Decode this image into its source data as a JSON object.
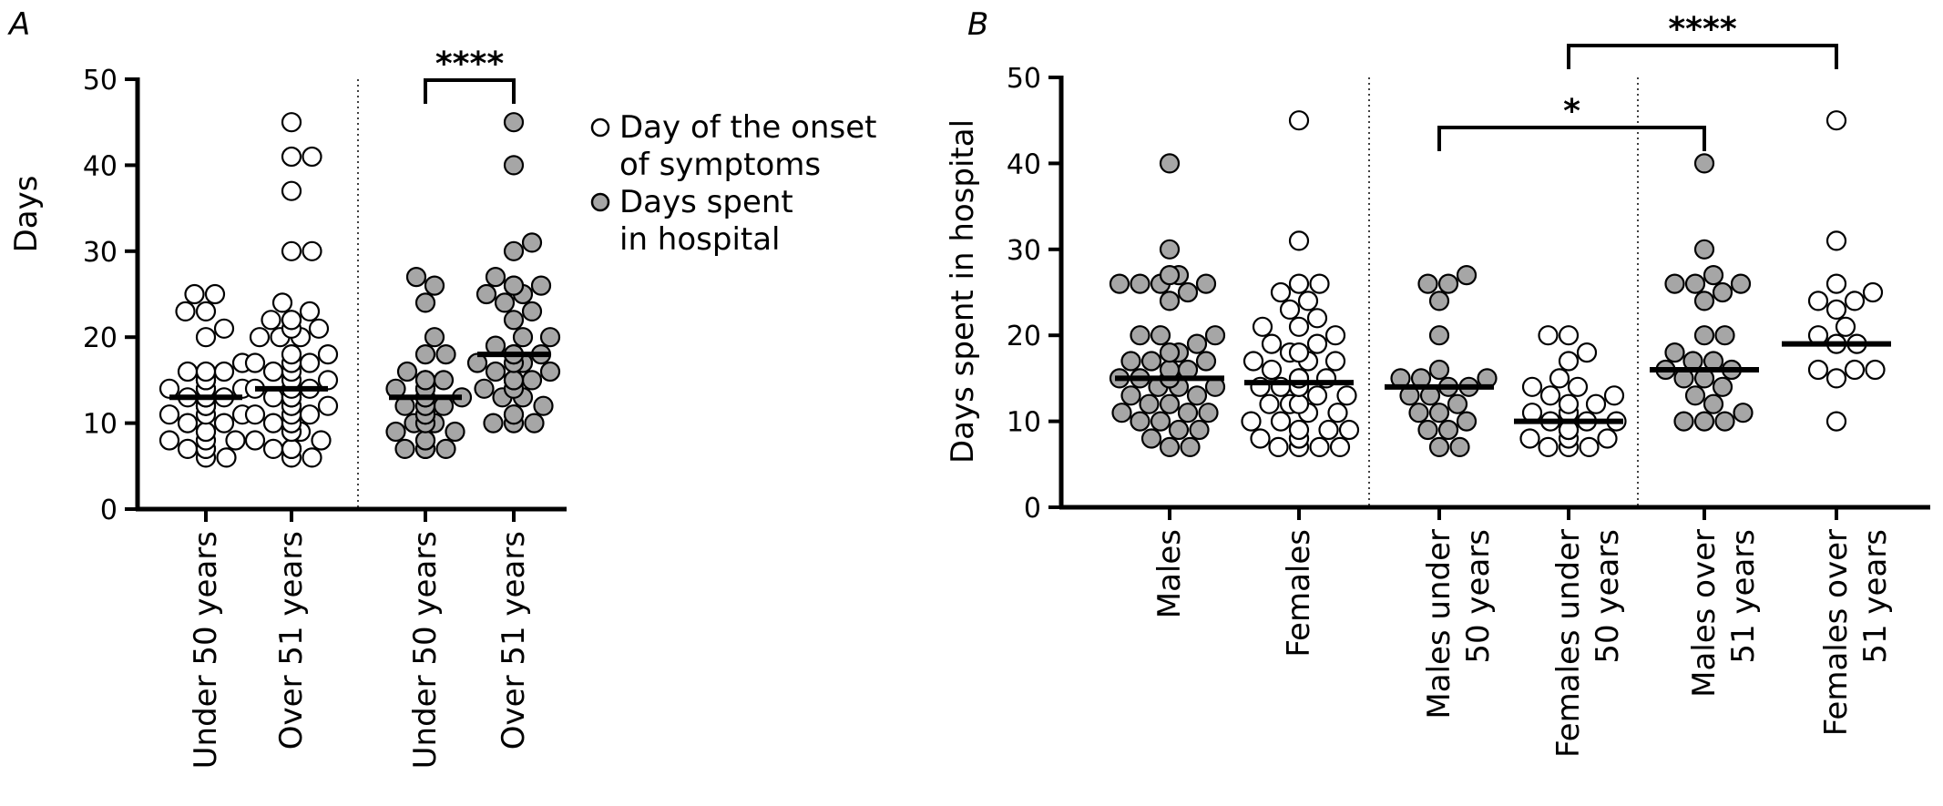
{
  "colors": {
    "open": "#ffffff",
    "filled": "#a6a6a6",
    "stroke": "#000000"
  },
  "legend": {
    "open_line1": "Day of the onset",
    "open_line2": "of symptoms",
    "filled_line1": "Days spent",
    "filled_line2": "in hospital"
  },
  "chart_data": [
    {
      "panel": "A",
      "type": "scatter",
      "ylabel": "Days",
      "ylim": [
        0,
        50
      ],
      "yticks": [
        0,
        10,
        20,
        30,
        40,
        50
      ],
      "categories": [
        {
          "label": "Under 50 years",
          "fill": "open",
          "median": 13,
          "values": [
            25,
            25,
            23,
            23,
            21,
            20,
            17,
            16,
            16,
            16,
            15,
            15,
            15,
            15,
            14,
            14,
            14,
            14,
            13,
            13,
            13,
            13,
            13,
            13,
            12,
            12,
            12,
            12,
            11,
            11,
            11,
            10,
            10,
            9,
            9,
            8,
            8,
            8,
            7,
            7,
            7,
            6,
            6
          ]
        },
        {
          "label": "Over 51 years",
          "fill": "open",
          "median": 14,
          "values": [
            45,
            41,
            41,
            37,
            30,
            30,
            24,
            23,
            22,
            22,
            22,
            21,
            21,
            20,
            20,
            20,
            18,
            18,
            17,
            17,
            17,
            16,
            16,
            15,
            15,
            14,
            14,
            14,
            13,
            13,
            13,
            13,
            13,
            12,
            12,
            12,
            11,
            11,
            11,
            10,
            10,
            10,
            9,
            9,
            9,
            8,
            8,
            7,
            7,
            7,
            7,
            6,
            6
          ]
        },
        {
          "label": "Under 50 years",
          "fill": "filled",
          "median": 13,
          "values": [
            27,
            26,
            24,
            20,
            18,
            18,
            16,
            15,
            15,
            15,
            14,
            14,
            14,
            13,
            13,
            13,
            13,
            12,
            12,
            12,
            12,
            11,
            11,
            11,
            10,
            10,
            10,
            9,
            9,
            8,
            8,
            7,
            7,
            7,
            7,
            7
          ]
        },
        {
          "label": "Over 51 years",
          "fill": "filled",
          "median": 18,
          "values": [
            45,
            40,
            31,
            30,
            27,
            26,
            26,
            26,
            25,
            25,
            24,
            23,
            22,
            20,
            20,
            19,
            18,
            18,
            18,
            17,
            17,
            17,
            16,
            16,
            15,
            15,
            15,
            15,
            14,
            14,
            13,
            13,
            12,
            11,
            11,
            10,
            10,
            10
          ]
        }
      ],
      "comparisons": [
        {
          "from": 2,
          "to": 3,
          "label": "****"
        }
      ]
    },
    {
      "panel": "B",
      "type": "scatter",
      "ylabel": "Days spent in hospital",
      "ylim": [
        0,
        50
      ],
      "yticks": [
        0,
        10,
        20,
        30,
        40,
        50
      ],
      "categories": [
        {
          "label_line1": "Males",
          "label_line2": "",
          "fill": "filled",
          "median": 15,
          "values": [
            40,
            30,
            27,
            27,
            26,
            26,
            26,
            26,
            25,
            24,
            20,
            20,
            20,
            19,
            18,
            18,
            17,
            17,
            17,
            16,
            16,
            15,
            15,
            15,
            15,
            15,
            14,
            14,
            14,
            13,
            13,
            12,
            12,
            11,
            11,
            11,
            10,
            10,
            9,
            9,
            8,
            7,
            7
          ]
        },
        {
          "label_line1": "Females",
          "label_line2": "",
          "fill": "open",
          "median": 14.5,
          "values": [
            45,
            31,
            26,
            26,
            25,
            24,
            23,
            22,
            21,
            21,
            20,
            19,
            19,
            18,
            18,
            17,
            17,
            17,
            16,
            15,
            15,
            15,
            14,
            14,
            14,
            14,
            13,
            13,
            12,
            12,
            12,
            11,
            11,
            10,
            10,
            9,
            9,
            9,
            8,
            8,
            8,
            7,
            7,
            7,
            7
          ]
        },
        {
          "label_line1": "Males under",
          "label_line2": "50 years",
          "fill": "filled",
          "median": 14,
          "values": [
            27,
            26,
            26,
            24,
            20,
            16,
            15,
            15,
            15,
            14,
            14,
            13,
            13,
            12,
            11,
            11,
            10,
            9,
            9,
            7,
            7
          ]
        },
        {
          "label_line1": "Females under",
          "label_line2": "50 years",
          "fill": "open",
          "median": 10,
          "values": [
            20,
            20,
            18,
            17,
            15,
            14,
            14,
            13,
            13,
            12,
            12,
            11,
            11,
            11,
            10,
            10,
            10,
            9,
            9,
            9,
            8,
            8,
            8,
            7,
            7,
            7
          ]
        },
        {
          "label_line1": "Males over",
          "label_line2": "51 years",
          "fill": "filled",
          "median": 16,
          "values": [
            40,
            30,
            27,
            26,
            26,
            26,
            25,
            24,
            20,
            20,
            18,
            17,
            17,
            16,
            16,
            15,
            15,
            14,
            13,
            12,
            11,
            10,
            10,
            10
          ]
        },
        {
          "label_line1": "Females over",
          "label_line2": "51 years",
          "fill": "open",
          "median": 19,
          "values": [
            45,
            31,
            26,
            25,
            24,
            24,
            23,
            21,
            20,
            19,
            19,
            16,
            16,
            16,
            15,
            10
          ]
        }
      ],
      "comparisons": [
        {
          "from": 2,
          "to": 4,
          "label": "*"
        },
        {
          "from": 3,
          "to": 5,
          "label": "****"
        }
      ]
    }
  ]
}
